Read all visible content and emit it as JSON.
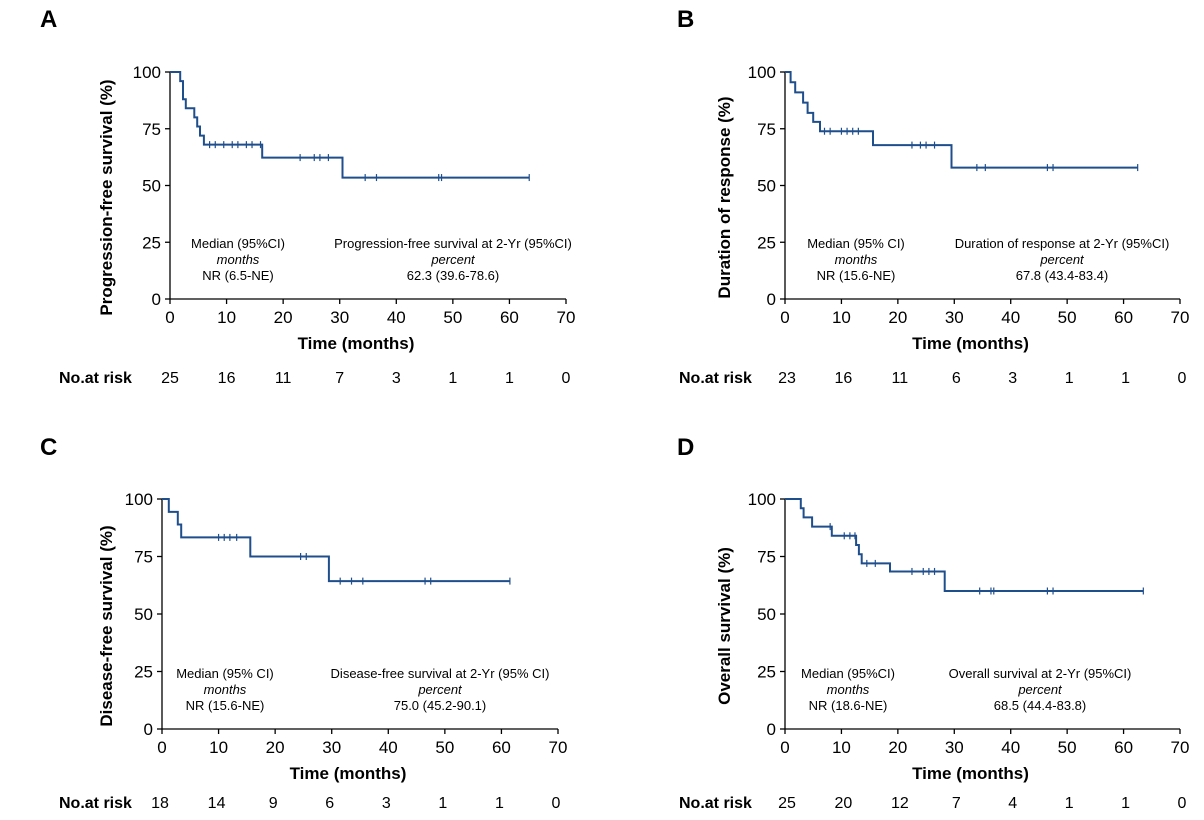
{
  "colors": {
    "curve": "#1f4e8c",
    "axis": "#000000"
  },
  "chart_data": [
    {
      "type": "line",
      "panel": "A",
      "ylabel": "Progression-free survival (%)",
      "xlabel": "Time (months)",
      "xlim": [
        0,
        70
      ],
      "ylim": [
        0,
        100
      ],
      "xticks": [
        "0",
        "10",
        "20",
        "30",
        "40",
        "50",
        "60",
        "70"
      ],
      "yticks": [
        "0",
        "25",
        "50",
        "75",
        "100"
      ],
      "series": [
        {
          "steps": [
            [
              0,
              100
            ],
            [
              1.8,
              100
            ],
            [
              1.8,
              96
            ],
            [
              2.3,
              96
            ],
            [
              2.3,
              88
            ],
            [
              2.8,
              88
            ],
            [
              2.8,
              84
            ],
            [
              4.3,
              84
            ],
            [
              4.3,
              80
            ],
            [
              4.8,
              80
            ],
            [
              4.8,
              76
            ],
            [
              5.3,
              76
            ],
            [
              5.3,
              72
            ],
            [
              6.0,
              72
            ],
            [
              6.0,
              68
            ],
            [
              16.3,
              68
            ],
            [
              16.3,
              62.3
            ],
            [
              30.5,
              62.3
            ],
            [
              30.5,
              53.5
            ],
            [
              63.5,
              53.5
            ]
          ],
          "censor": [
            [
              7,
              68
            ],
            [
              8,
              68
            ],
            [
              9.5,
              68
            ],
            [
              11,
              68
            ],
            [
              12,
              68
            ],
            [
              13.5,
              68
            ],
            [
              14.5,
              68
            ],
            [
              16,
              68
            ],
            [
              23,
              62.3
            ],
            [
              25.5,
              62.3
            ],
            [
              26.5,
              62.3
            ],
            [
              28,
              62.3
            ],
            [
              34.5,
              53.5
            ],
            [
              36.5,
              53.5
            ],
            [
              47.5,
              53.5
            ],
            [
              48,
              53.5
            ],
            [
              63.5,
              53.5
            ]
          ]
        }
      ],
      "annotations": {
        "median": [
          "Median (95%CI)",
          "months",
          "NR (6.5-NE)"
        ],
        "rate": [
          "Progression-free survival at 2-Yr (95%CI)",
          "percent",
          "62.3 (39.6-78.6)"
        ]
      },
      "risk_label": "No.at risk",
      "risk_values": [
        "25",
        "16",
        "11",
        "7",
        "3",
        "1",
        "1",
        "0"
      ]
    },
    {
      "type": "line",
      "panel": "B",
      "ylabel": "Duration of response (%)",
      "xlabel": "Time (months)",
      "xlim": [
        0,
        70
      ],
      "ylim": [
        0,
        100
      ],
      "xticks": [
        "0",
        "10",
        "20",
        "30",
        "40",
        "50",
        "60",
        "70"
      ],
      "yticks": [
        "0",
        "25",
        "50",
        "75",
        "100"
      ],
      "series": [
        {
          "steps": [
            [
              0,
              100
            ],
            [
              1,
              100
            ],
            [
              1,
              95.5
            ],
            [
              1.8,
              95.5
            ],
            [
              1.8,
              91
            ],
            [
              3.2,
              91
            ],
            [
              3.2,
              86.5
            ],
            [
              4,
              86.5
            ],
            [
              4,
              82
            ],
            [
              5,
              82
            ],
            [
              5,
              78
            ],
            [
              6.2,
              78
            ],
            [
              6.2,
              73.9
            ],
            [
              15.6,
              73.9
            ],
            [
              15.6,
              67.8
            ],
            [
              29.5,
              67.8
            ],
            [
              29.5,
              57.9
            ],
            [
              62.5,
              57.9
            ]
          ],
          "censor": [
            [
              7,
              73.9
            ],
            [
              8,
              73.9
            ],
            [
              10,
              73.9
            ],
            [
              11,
              73.9
            ],
            [
              12,
              73.9
            ],
            [
              13,
              73.9
            ],
            [
              22.5,
              67.8
            ],
            [
              24,
              67.8
            ],
            [
              25,
              67.8
            ],
            [
              26.5,
              67.8
            ],
            [
              34,
              57.9
            ],
            [
              35.5,
              57.9
            ],
            [
              46.5,
              57.9
            ],
            [
              47.5,
              57.9
            ],
            [
              62.5,
              57.9
            ]
          ]
        }
      ],
      "annotations": {
        "median": [
          "Median (95% CI)",
          "months",
          "NR (15.6-NE)"
        ],
        "rate": [
          "Duration of response at 2-Yr (95%CI)",
          "percent",
          "67.8 (43.4-83.4)"
        ]
      },
      "risk_label": "No.at risk",
      "risk_values": [
        "23",
        "16",
        "11",
        "6",
        "3",
        "1",
        "1",
        "0"
      ]
    },
    {
      "type": "line",
      "panel": "C",
      "ylabel": "Disease-free survival (%)",
      "xlabel": "Time (months)",
      "xlim": [
        0,
        70
      ],
      "ylim": [
        0,
        100
      ],
      "xticks": [
        "0",
        "10",
        "20",
        "30",
        "40",
        "50",
        "60",
        "70"
      ],
      "yticks": [
        "0",
        "25",
        "50",
        "75",
        "100"
      ],
      "series": [
        {
          "steps": [
            [
              0,
              100
            ],
            [
              1.2,
              100
            ],
            [
              1.2,
              94.4
            ],
            [
              2.8,
              94.4
            ],
            [
              2.8,
              88.9
            ],
            [
              3.4,
              88.9
            ],
            [
              3.4,
              83.3
            ],
            [
              15.6,
              83.3
            ],
            [
              15.6,
              75
            ],
            [
              29.5,
              75
            ],
            [
              29.5,
              64.3
            ],
            [
              61.5,
              64.3
            ]
          ],
          "censor": [
            [
              10,
              83.3
            ],
            [
              11,
              83.3
            ],
            [
              12,
              83.3
            ],
            [
              13.2,
              83.3
            ],
            [
              24.5,
              75
            ],
            [
              25.5,
              75
            ],
            [
              31.5,
              64.3
            ],
            [
              33.5,
              64.3
            ],
            [
              35.5,
              64.3
            ],
            [
              46.5,
              64.3
            ],
            [
              47.5,
              64.3
            ],
            [
              61.5,
              64.3
            ]
          ]
        }
      ],
      "annotations": {
        "median": [
          "Median (95% CI)",
          "months",
          "NR (15.6-NE)"
        ],
        "rate": [
          "Disease-free survival at 2-Yr (95% CI)",
          "percent",
          "75.0 (45.2-90.1)"
        ]
      },
      "risk_label": "No.at risk",
      "risk_values": [
        "18",
        "14",
        "9",
        "6",
        "3",
        "1",
        "1",
        "0"
      ]
    },
    {
      "type": "line",
      "panel": "D",
      "ylabel": "Overall survival (%)",
      "xlabel": "Time (months)",
      "xlim": [
        0,
        70
      ],
      "ylim": [
        0,
        100
      ],
      "xticks": [
        "0",
        "10",
        "20",
        "30",
        "40",
        "50",
        "60",
        "70"
      ],
      "yticks": [
        "0",
        "25",
        "50",
        "75",
        "100"
      ],
      "series": [
        {
          "steps": [
            [
              0,
              100
            ],
            [
              2.8,
              100
            ],
            [
              2.8,
              96
            ],
            [
              3.3,
              96
            ],
            [
              3.3,
              92
            ],
            [
              4.8,
              92
            ],
            [
              4.8,
              88
            ],
            [
              8.3,
              88
            ],
            [
              8.3,
              84
            ],
            [
              12.6,
              84
            ],
            [
              12.6,
              80
            ],
            [
              13.1,
              80
            ],
            [
              13.1,
              76
            ],
            [
              13.6,
              76
            ],
            [
              13.6,
              72
            ],
            [
              18.6,
              72
            ],
            [
              18.6,
              68.5
            ],
            [
              28.3,
              68.5
            ],
            [
              28.3,
              60
            ],
            [
              63.5,
              60
            ]
          ],
          "censor": [
            [
              8,
              88
            ],
            [
              10.5,
              84
            ],
            [
              11.5,
              84
            ],
            [
              12.4,
              84
            ],
            [
              14.5,
              72
            ],
            [
              16,
              72
            ],
            [
              22.5,
              68.5
            ],
            [
              24.5,
              68.5
            ],
            [
              25.5,
              68.5
            ],
            [
              26.5,
              68.5
            ],
            [
              34.5,
              60
            ],
            [
              36.5,
              60
            ],
            [
              37,
              60
            ],
            [
              46.5,
              60
            ],
            [
              47.5,
              60
            ],
            [
              63.5,
              60
            ]
          ]
        }
      ],
      "annotations": {
        "median": [
          "Median (95%CI)",
          "months",
          "NR (18.6-NE)"
        ],
        "rate": [
          "Overall survival at 2-Yr (95%CI)",
          "percent",
          "68.5 (44.4-83.8)"
        ]
      },
      "risk_label": "No.at risk",
      "risk_values": [
        "25",
        "20",
        "12",
        "7",
        "4",
        "1",
        "1",
        "0"
      ]
    }
  ]
}
